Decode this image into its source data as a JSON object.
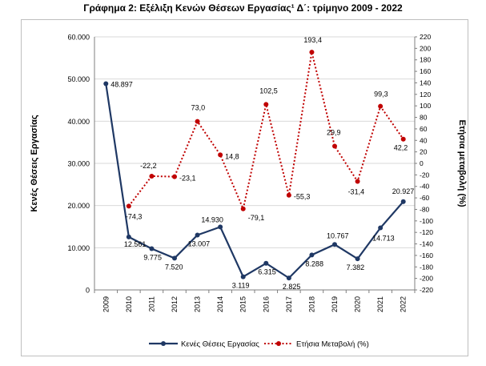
{
  "page": {
    "title": "Γράφημα 2: Εξέλιξη Κενών Θέσεων Εργασίας¹ Δ΄: τρίμηνο 2009 - 2022"
  },
  "colors": {
    "series1": "#1f3864",
    "series2": "#c00000",
    "grid": "#d9d9d9",
    "axis": "#7f7f7f"
  },
  "chart_data": {
    "type": "line",
    "categories": [
      "2009",
      "2010",
      "2011",
      "2012",
      "2013",
      "2014",
      "2015",
      "2016",
      "2017",
      "2018",
      "2019",
      "2020",
      "2021",
      "2022"
    ],
    "y_left": {
      "label": "Κενές Θέσεις Εργασίας",
      "range": [
        0,
        60000
      ],
      "ticks": [
        "0",
        "10.000",
        "20.000",
        "30.000",
        "40.000",
        "50.000",
        "60.000"
      ]
    },
    "y_right": {
      "label": "Ετήσια μεταβολή (%)",
      "range": [
        -220,
        220
      ],
      "ticks": [
        "-220",
        "-200",
        "-180",
        "-160",
        "-140",
        "-120",
        "-100",
        "-80",
        "-60",
        "-40",
        "-20",
        "0",
        "20",
        "40",
        "60",
        "80",
        "100",
        "120",
        "140",
        "160",
        "180",
        "200",
        "220"
      ]
    },
    "series": [
      {
        "name": "Κενές Θέσεις Εργασίας",
        "axis": "left",
        "values": [
          48897,
          12561,
          9775,
          7520,
          13007,
          14930,
          3119,
          6315,
          2825,
          8288,
          10767,
          7382,
          14713,
          20927
        ],
        "labels": [
          "48.897",
          "12.561",
          "9.775",
          "7.520",
          "13.007",
          "14.930",
          "3.119",
          "6.315",
          "2.825",
          "8.288",
          "10.767",
          "7.382",
          "14.713",
          "20.927"
        ]
      },
      {
        "name": "Ετήσια Μεταβολή (%)",
        "axis": "right",
        "values": [
          null,
          -74.3,
          -22.2,
          -23.1,
          73.0,
          14.8,
          -79.1,
          102.5,
          -55.3,
          193.4,
          29.9,
          -31.4,
          99.3,
          42.2
        ],
        "labels": [
          "",
          "-74,3",
          "-22,2",
          "-23,1",
          "73,0",
          "14,8",
          "-79,1",
          "102,5",
          "-55,3",
          "193,4",
          "29,9",
          "-31,4",
          "99,3",
          "42,2"
        ]
      }
    ],
    "legend": "bottom",
    "grid": true
  }
}
